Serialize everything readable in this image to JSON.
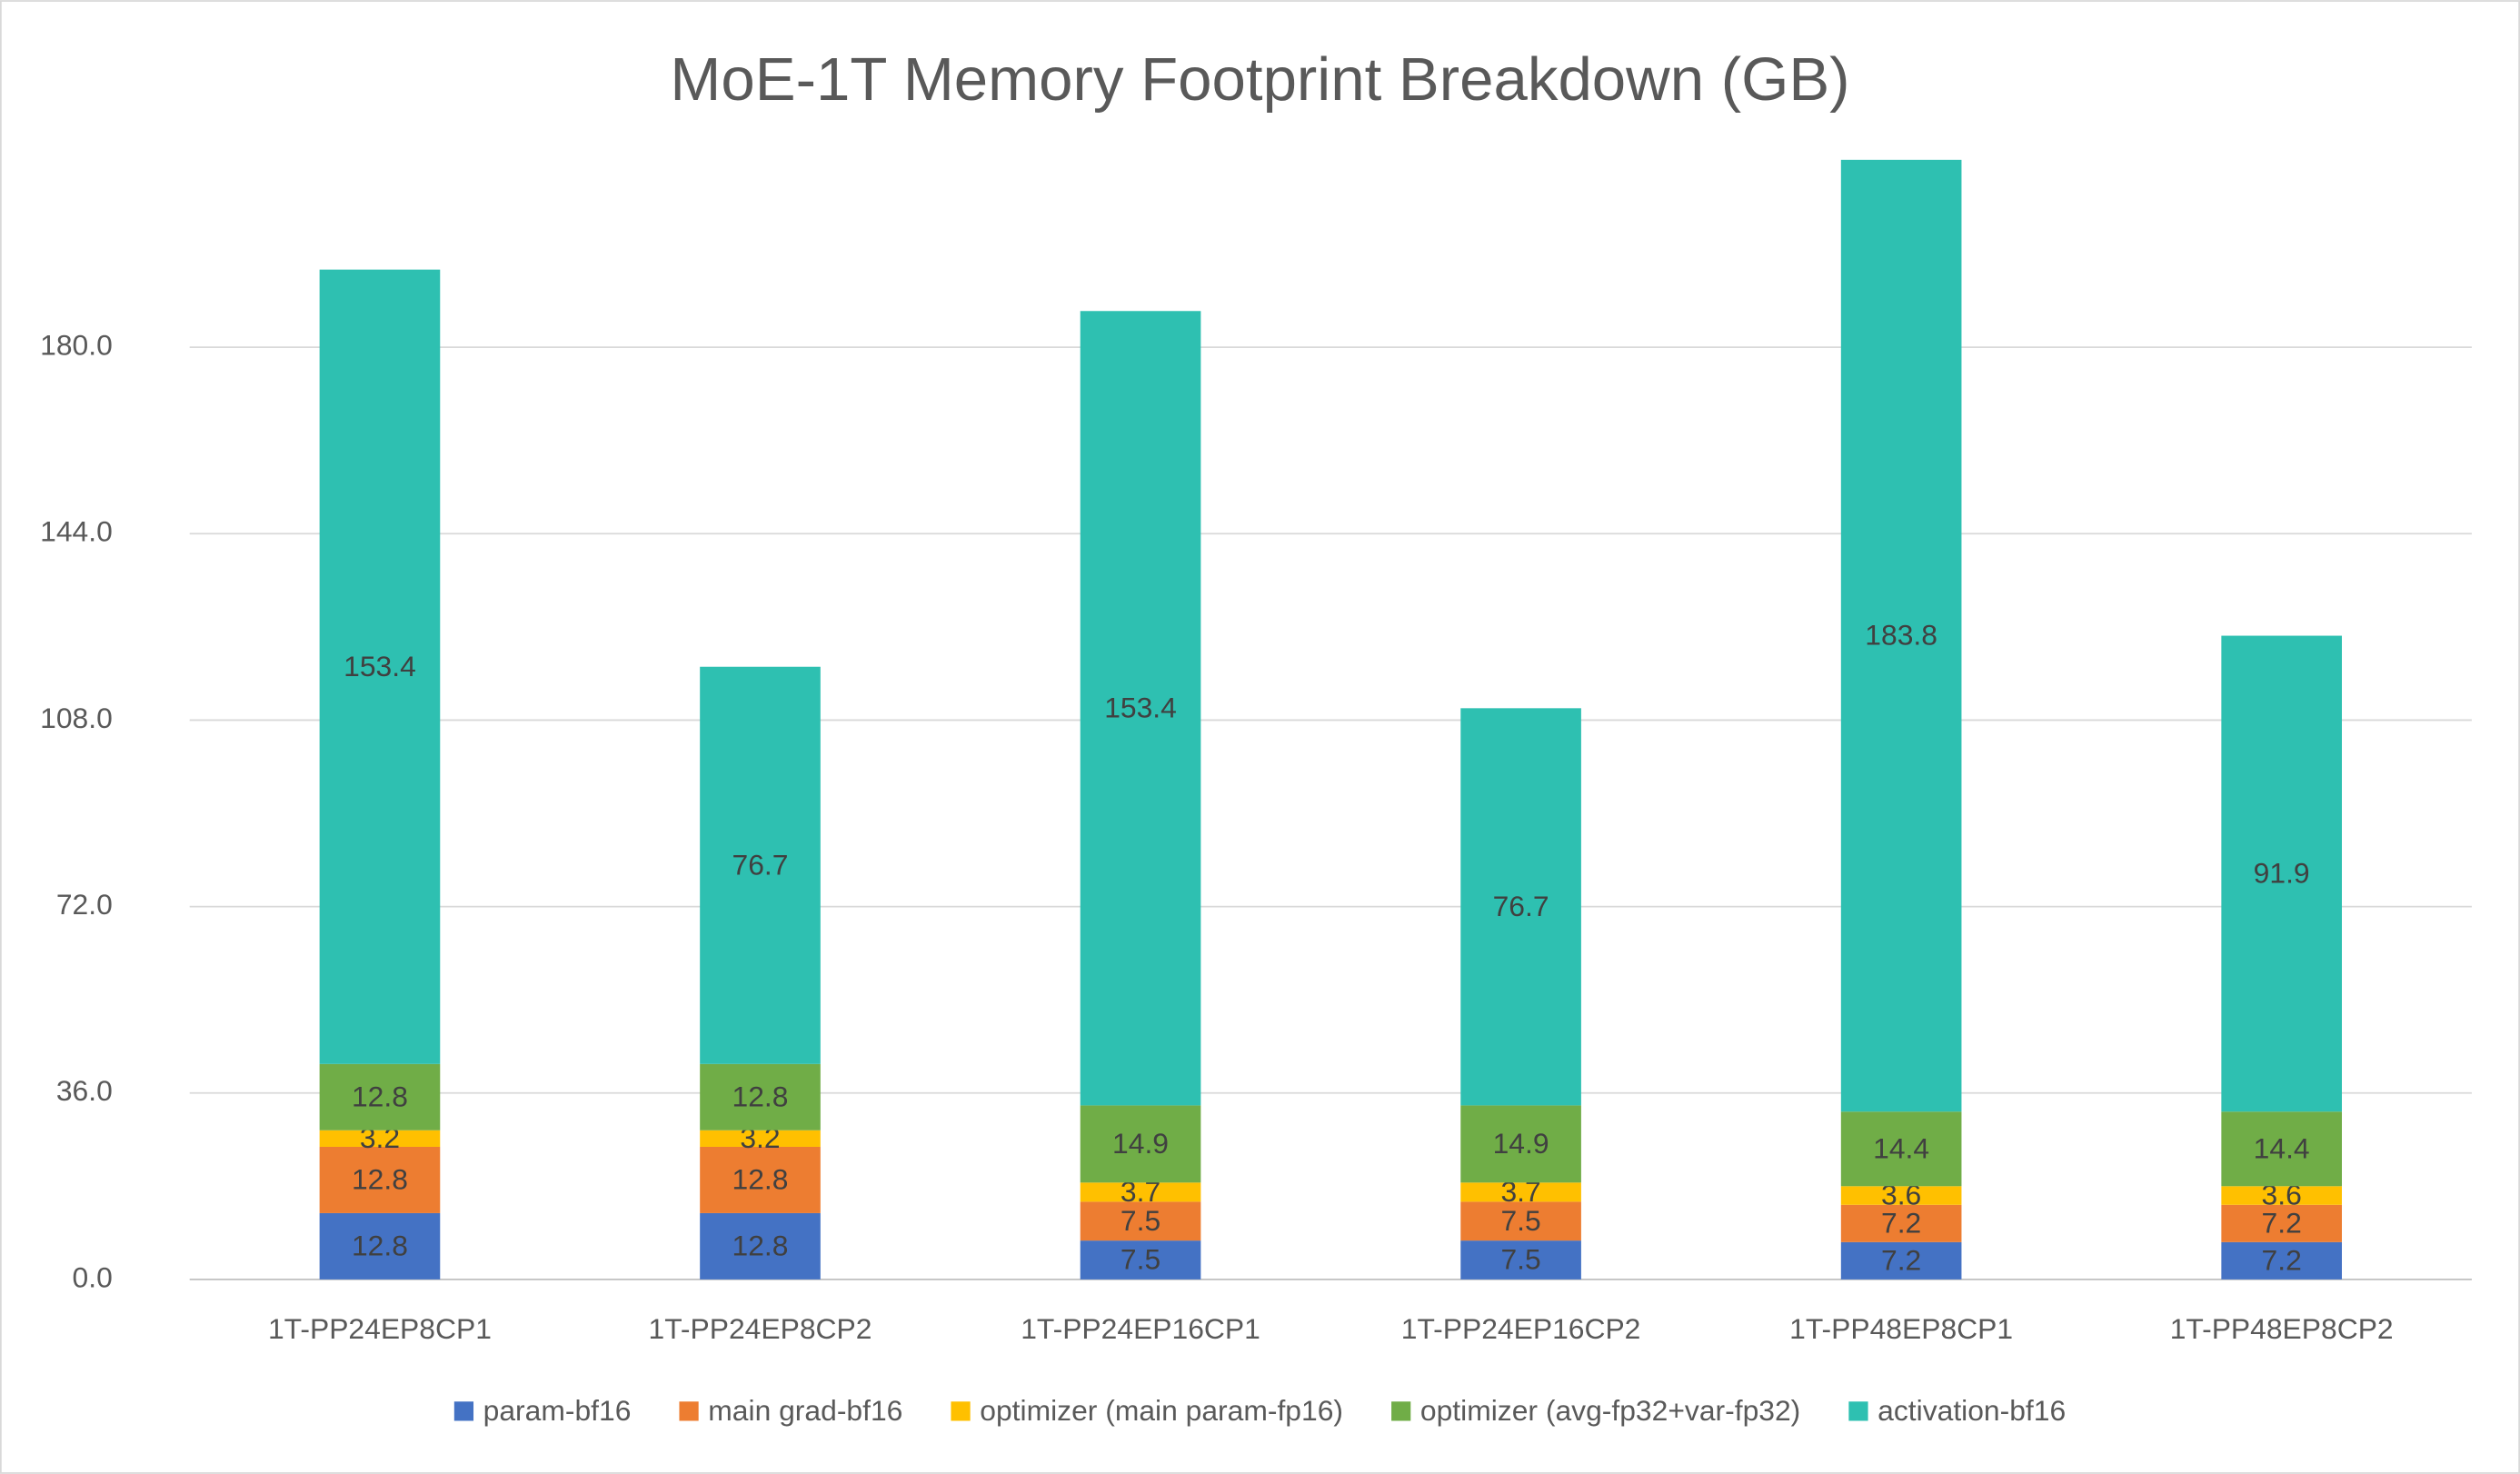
{
  "chart_data": {
    "type": "stacked_bar",
    "title": "MoE-1T Memory Footprint Breakdown (GB)",
    "categories": [
      "1T-PP24EP8CP1",
      "1T-PP24EP8CP2",
      "1T-PP24EP16CP1",
      "1T-PP24EP16CP2",
      "1T-PP48EP8CP1",
      "1T-PP48EP8CP2"
    ],
    "series": [
      {
        "name": "param-bf16",
        "color": "#4472c4",
        "values": [
          12.8,
          12.8,
          7.5,
          7.5,
          7.2,
          7.2
        ]
      },
      {
        "name": "main grad-bf16",
        "color": "#ed7d31",
        "values": [
          12.8,
          12.8,
          7.5,
          7.5,
          7.2,
          7.2
        ]
      },
      {
        "name": "optimizer (main param-fp16)",
        "color": "#ffc000",
        "values": [
          3.2,
          3.2,
          3.7,
          3.7,
          3.6,
          3.6
        ]
      },
      {
        "name": "optimizer (avg-fp32+var-fp32)",
        "color": "#70ad47",
        "values": [
          12.8,
          12.8,
          14.9,
          14.9,
          14.4,
          14.4
        ]
      },
      {
        "name": "activation-bf16",
        "color": "#2ec0b1",
        "values": [
          153.4,
          76.7,
          153.4,
          76.7,
          183.8,
          91.9
        ]
      }
    ],
    "ylim": [
      0,
      216
    ],
    "yticks": [
      {
        "value": 0,
        "label": "0.0"
      },
      {
        "value": 36,
        "label": "36.0"
      },
      {
        "value": 72,
        "label": "72.0"
      },
      {
        "value": 108,
        "label": "108.0"
      },
      {
        "value": 144,
        "label": "144.0"
      },
      {
        "value": 180,
        "label": "180.0"
      }
    ],
    "grid": true,
    "legend": "bottom"
  }
}
